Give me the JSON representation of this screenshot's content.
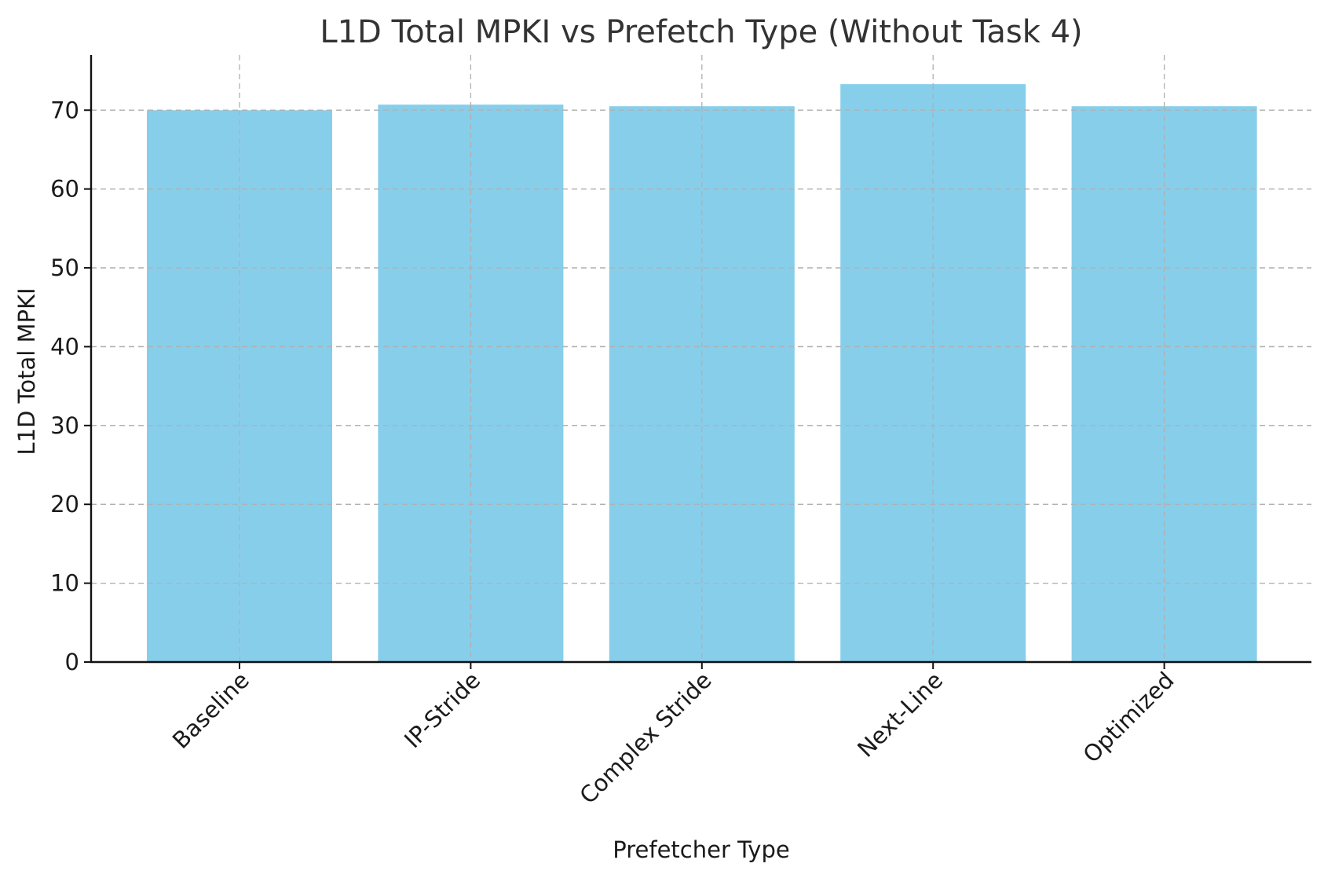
{
  "chart_data": {
    "type": "bar",
    "title": "L1D Total MPKI vs Prefetch Type (Without Task 4)",
    "xlabel": "Prefetcher Type",
    "ylabel": "L1D Total MPKI",
    "categories": [
      "Baseline",
      "IP-Stride",
      "Complex Stride",
      "Next-Line",
      "Optimized"
    ],
    "values": [
      70.0,
      70.7,
      70.5,
      73.3,
      70.5
    ],
    "ylim": [
      0,
      77
    ],
    "yticks": [
      0,
      10,
      20,
      30,
      40,
      50,
      60,
      70
    ],
    "grid": true,
    "bar_color": "#87CEEB",
    "xtick_rotation": "45 degrees"
  }
}
